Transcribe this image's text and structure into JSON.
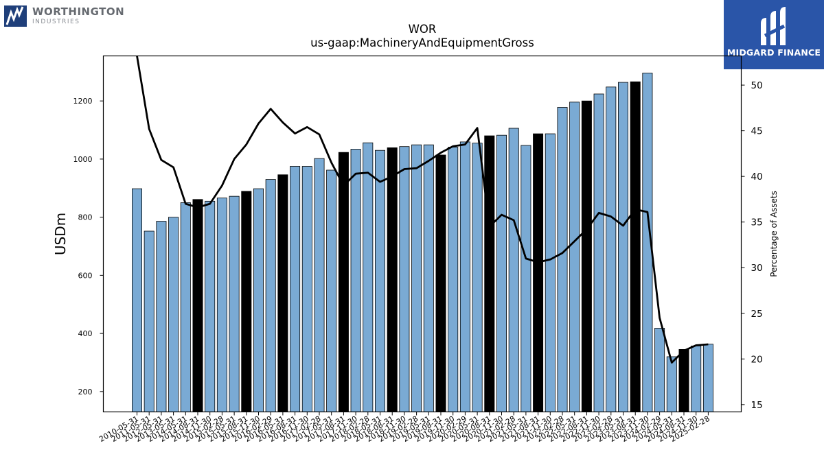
{
  "logos": {
    "left": {
      "name": "WORTHINGTON",
      "sub": "INDUSTRIES",
      "color": "#1f3f7a"
    },
    "right": {
      "name": "MIDGARD FINANCE",
      "bg": "#2a55a8"
    }
  },
  "chart_data": {
    "type": "bar",
    "title": "WOR",
    "subtitle": "us-gaap:MachineryAndEquipmentGross",
    "ylabel": "USDm",
    "y2label": "Percentage of Assets",
    "ylim": [
      130,
      1355
    ],
    "y2lim": [
      14.2,
      53.2
    ],
    "yticks": [
      200,
      400,
      600,
      800,
      1000,
      1200
    ],
    "y2ticks": [
      15,
      20,
      25,
      30,
      35,
      40,
      45,
      50
    ],
    "categories": [
      "2010-05-31",
      "2011-05-31",
      "2012-05-31",
      "2013-05-31",
      "2014-05-31",
      "2014-08-31",
      "2014-11-30",
      "2015-02-28",
      "2015-05-31",
      "2015-08-31",
      "2015-11-30",
      "2016-02-29",
      "2016-05-31",
      "2016-08-31",
      "2016-11-30",
      "2017-02-28",
      "2017-05-31",
      "2017-08-31",
      "2017-11-30",
      "2018-02-28",
      "2018-05-31",
      "2018-08-31",
      "2018-11-30",
      "2019-02-28",
      "2019-05-31",
      "2019-08-31",
      "2019-11-30",
      "2020-02-29",
      "2020-05-31",
      "2020-08-31",
      "2020-11-30",
      "2021-02-28",
      "2021-05-31",
      "2021-08-31",
      "2021-11-30",
      "2022-02-28",
      "2022-05-31",
      "2022-08-31",
      "2022-11-30",
      "2023-02-28",
      "2023-05-31",
      "2023-08-31",
      "2023-11-30",
      "2024-02-29",
      "2024-05-31",
      "2024-08-31",
      "2024-11-30",
      "2025-02-28"
    ],
    "values": [
      898,
      752,
      786,
      800,
      850,
      861,
      855,
      866,
      872,
      889,
      898,
      930,
      946,
      975,
      975,
      1002,
      962,
      1023,
      1034,
      1056,
      1030,
      1039,
      1043,
      1049,
      1049,
      1014,
      1041,
      1059,
      1055,
      1080,
      1082,
      1106,
      1047,
      1087,
      1087,
      1178,
      1196,
      1200,
      1224,
      1248,
      1264,
      1266,
      1296,
      418,
      320,
      345,
      357,
      363
    ],
    "highlight": [
      5,
      9,
      12,
      17,
      21,
      25,
      29,
      33,
      37,
      41,
      45
    ],
    "bar_color": "#7aaad4",
    "highlight_color": "#000000",
    "line": {
      "values": [
        53.2,
        45.2,
        41.8,
        41.0,
        37.0,
        36.6,
        37.0,
        39.0,
        41.9,
        43.5,
        45.8,
        47.4,
        45.9,
        44.7,
        45.4,
        44.6,
        41.5,
        39.0,
        40.3,
        40.4,
        39.4,
        40.0,
        40.8,
        40.9,
        41.7,
        42.6,
        43.3,
        43.5,
        45.3,
        34.5,
        35.8,
        35.2,
        31.0,
        30.6,
        30.9,
        31.6,
        32.9,
        34.2,
        36.0,
        35.6,
        34.6,
        36.4,
        36.1,
        24.5,
        19.6,
        20.9,
        21.5,
        21.6
      ],
      "color": "#000000"
    }
  }
}
